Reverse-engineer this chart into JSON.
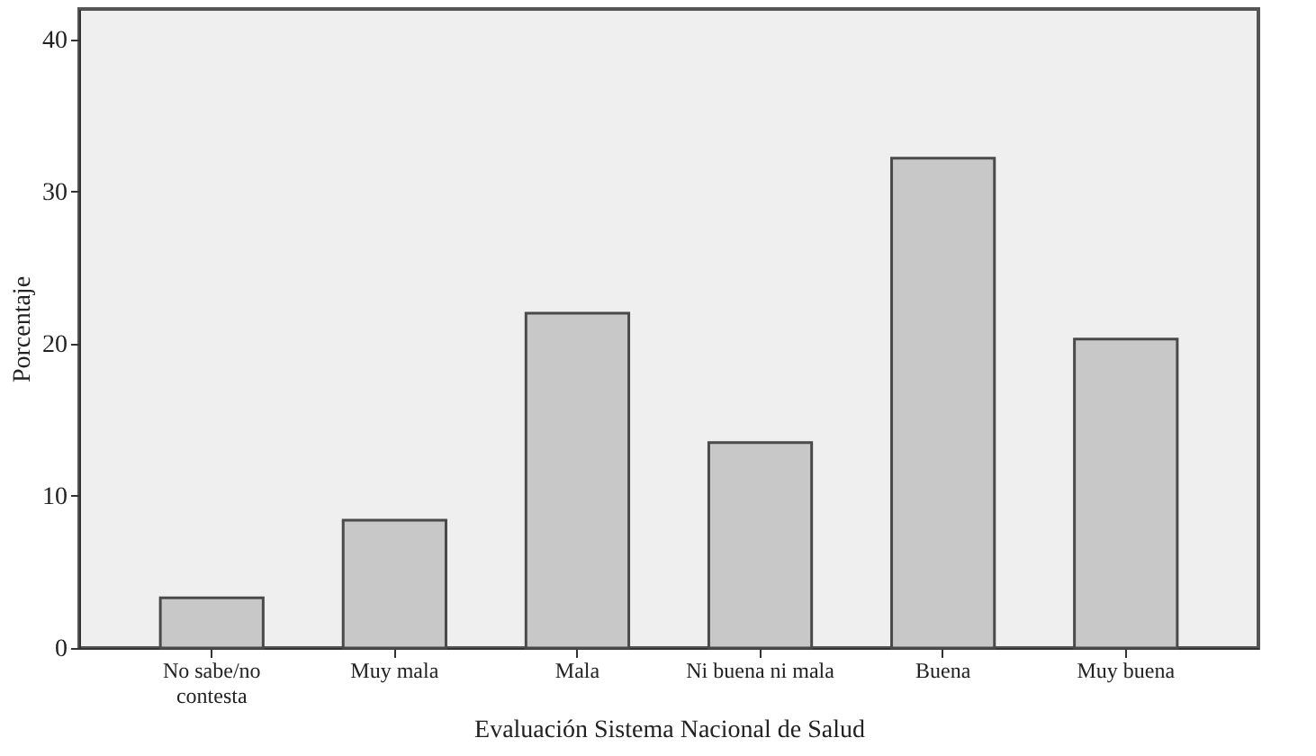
{
  "chart_data": {
    "type": "bar",
    "xlabel": "Evaluación Sistema Nacional de Salud",
    "ylabel": "Porcentaje",
    "categories": [
      "No sabe/no contesta",
      "Muy mala",
      "Mala",
      "Ni buena ni mala",
      "Buena",
      "Muy buena"
    ],
    "values": [
      3.3,
      8.4,
      22.0,
      13.5,
      32.2,
      20.3
    ],
    "color": "#c8c8c8",
    "ylim": [
      0,
      42
    ],
    "yticks": [
      0,
      10,
      20,
      30,
      40
    ],
    "grid": false
  }
}
